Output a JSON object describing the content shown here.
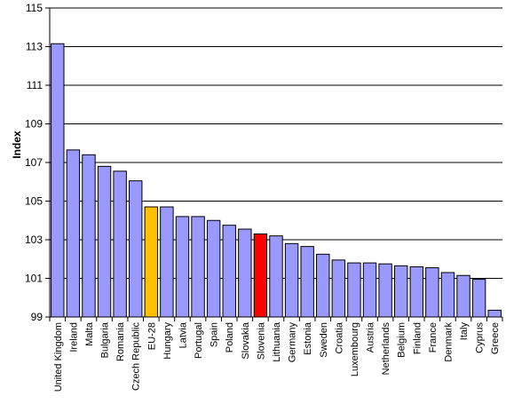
{
  "chart_data": {
    "type": "bar",
    "title": "",
    "xlabel": "",
    "ylabel": "Index",
    "ylim": [
      99,
      115
    ],
    "yticks": [
      99,
      101,
      103,
      105,
      107,
      109,
      111,
      113,
      115
    ],
    "grid": true,
    "legend": "none",
    "categories": [
      "United Kingdom",
      "Ireland",
      "Malta",
      "Bulgaria",
      "Romania",
      "Czech Republic",
      "EU-28",
      "Hungary",
      "Latvia",
      "Portugal",
      "Spain",
      "Poland",
      "Slovakia",
      "Slovenia",
      "Lithuania",
      "Germany",
      "Estonia",
      "Sweden",
      "Croatia",
      "Luxembourg",
      "Austria",
      "Netherlands",
      "Belgium",
      "Finland",
      "France",
      "Denmark",
      "Italy",
      "Cyprus",
      "Greece"
    ],
    "values": [
      113.15,
      107.65,
      107.4,
      106.8,
      106.55,
      106.05,
      104.7,
      104.7,
      104.2,
      104.2,
      104.0,
      103.75,
      103.55,
      103.3,
      103.2,
      102.8,
      102.65,
      102.25,
      101.95,
      101.8,
      101.8,
      101.75,
      101.65,
      101.6,
      101.55,
      101.3,
      101.15,
      100.95,
      99.35
    ],
    "colors": {
      "default": "#9999ff",
      "highlight_eu": "#ffc000",
      "highlight_slovenia": "#ff0000",
      "border": "#000000",
      "grid": "#000000"
    },
    "highlights": {
      "EU-28": "highlight_eu",
      "Slovenia": "highlight_slovenia"
    }
  }
}
